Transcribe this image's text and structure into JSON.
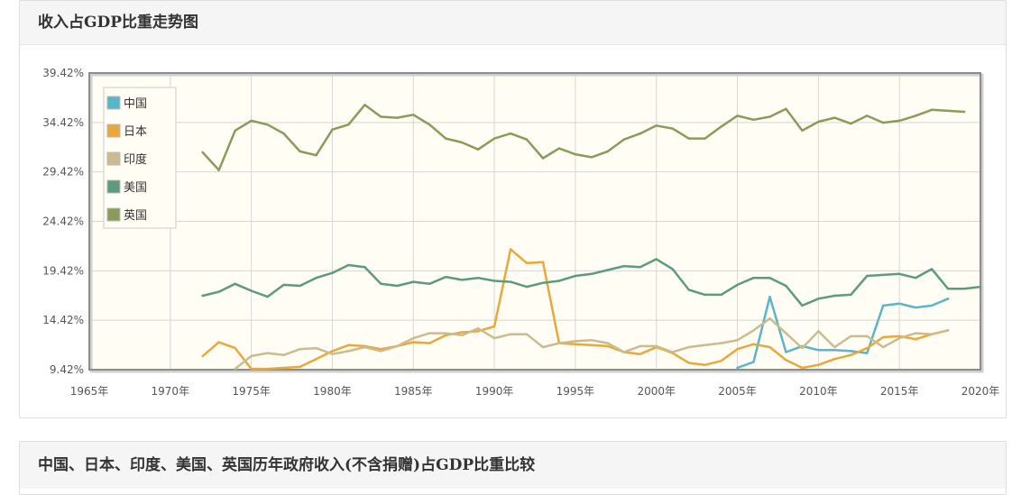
{
  "panel_top": {
    "title": "收入占GDP比重走势图"
  },
  "panel_bottom": {
    "title": "中国、日本、印度、美国、英国历年政府收入(不含捐赠)占GDP比重比较"
  },
  "chart_data": {
    "type": "line",
    "title": "",
    "xlabel": "",
    "ylabel": "",
    "xlim": [
      1965,
      2020
    ],
    "ylim": [
      9.42,
      39.42
    ],
    "x_ticks": [
      "1965年",
      "1970年",
      "1975年",
      "1980年",
      "1985年",
      "1990年",
      "1995年",
      "2000年",
      "2005年",
      "2010年",
      "2015年",
      "2020年"
    ],
    "y_ticks": [
      "9.42%",
      "14.42%",
      "19.42%",
      "24.42%",
      "29.42%",
      "34.42%",
      "39.42%"
    ],
    "grid": true,
    "legend_position": "top-left",
    "series": [
      {
        "name": "中国",
        "color": "#5bb5c8",
        "x": [
          2005,
          2006,
          2007,
          2008,
          2009,
          2010,
          2011,
          2012,
          2013,
          2014,
          2015,
          2016,
          2017,
          2018
        ],
        "y": [
          9.6,
          10.2,
          16.8,
          11.2,
          11.8,
          11.4,
          11.4,
          11.3,
          11.1,
          15.9,
          16.1,
          15.7,
          15.9,
          16.6
        ]
      },
      {
        "name": "日本",
        "color": "#e8a83a",
        "x": [
          1972,
          1973,
          1974,
          1975,
          1976,
          1977,
          1978,
          1979,
          1980,
          1981,
          1982,
          1983,
          1984,
          1985,
          1986,
          1987,
          1988,
          1989,
          1990,
          1991,
          1992,
          1993,
          1994,
          1995,
          1996,
          1997,
          1998,
          1999,
          2000,
          2001,
          2002,
          2003,
          2004,
          2005,
          2006,
          2007,
          2008,
          2009,
          2010,
          2011,
          2012,
          2013,
          2014,
          2015,
          2016,
          2017,
          2018
        ],
        "y": [
          10.8,
          12.2,
          11.6,
          9.5,
          9.5,
          9.6,
          9.7,
          10.5,
          11.3,
          11.9,
          11.8,
          11.5,
          11.8,
          12.2,
          12.1,
          12.9,
          13.2,
          13.3,
          13.8,
          21.6,
          20.2,
          20.3,
          12.1,
          12.0,
          11.9,
          11.8,
          11.2,
          11.0,
          11.7,
          11.1,
          10.1,
          9.9,
          10.3,
          11.5,
          12.0,
          11.7,
          10.4,
          9.6,
          9.9,
          10.5,
          10.9,
          11.6,
          12.7,
          12.8,
          12.5,
          13.0,
          13.4
        ]
      },
      {
        "name": "印度",
        "color": "#cbbb8f",
        "x": [
          1974,
          1975,
          1976,
          1977,
          1978,
          1979,
          1980,
          1981,
          1982,
          1983,
          1984,
          1985,
          1986,
          1987,
          1988,
          1989,
          1990,
          1991,
          1992,
          1993,
          1994,
          1995,
          1996,
          1997,
          1998,
          1999,
          2000,
          2001,
          2002,
          2003,
          2004,
          2005,
          2006,
          2007,
          2008,
          2009,
          2010,
          2011,
          2012,
          2013,
          2014,
          2015,
          2016,
          2017,
          2018
        ],
        "y": [
          9.5,
          10.8,
          11.1,
          10.9,
          11.5,
          11.6,
          11.0,
          11.3,
          11.7,
          11.3,
          11.8,
          12.6,
          13.1,
          13.1,
          12.9,
          13.6,
          12.6,
          13.0,
          13.0,
          11.7,
          12.1,
          12.3,
          12.4,
          12.1,
          11.2,
          11.8,
          11.8,
          11.2,
          11.7,
          11.9,
          12.1,
          12.4,
          13.4,
          14.6,
          13.1,
          11.6,
          13.3,
          11.7,
          12.8,
          12.8,
          11.7,
          12.6,
          13.1,
          13.0,
          13.4
        ]
      },
      {
        "name": "美国",
        "color": "#5e9a7c",
        "x": [
          1972,
          1973,
          1974,
          1975,
          1976,
          1977,
          1978,
          1979,
          1980,
          1981,
          1982,
          1983,
          1984,
          1985,
          1986,
          1987,
          1988,
          1989,
          1990,
          1991,
          1992,
          1993,
          1994,
          1995,
          1996,
          1997,
          1998,
          1999,
          2000,
          2001,
          2002,
          2003,
          2004,
          2005,
          2006,
          2007,
          2008,
          2009,
          2010,
          2011,
          2012,
          2013,
          2014,
          2015,
          2016,
          2017,
          2018,
          2019,
          2020
        ],
        "y": [
          16.9,
          17.3,
          18.1,
          17.4,
          16.8,
          18.0,
          17.9,
          18.7,
          19.2,
          20.0,
          19.8,
          18.1,
          17.9,
          18.3,
          18.1,
          18.8,
          18.5,
          18.7,
          18.4,
          18.3,
          17.8,
          18.2,
          18.4,
          18.9,
          19.1,
          19.5,
          19.9,
          19.8,
          20.6,
          19.6,
          17.5,
          17.0,
          17.0,
          18.0,
          18.7,
          18.7,
          17.9,
          15.9,
          16.6,
          16.9,
          17.0,
          18.9,
          19.0,
          19.1,
          18.7,
          19.6,
          17.6,
          17.6,
          17.8
        ]
      },
      {
        "name": "英国",
        "color": "#8b9b5c",
        "x": [
          1972,
          1973,
          1974,
          1975,
          1976,
          1977,
          1978,
          1979,
          1980,
          1981,
          1982,
          1983,
          1984,
          1985,
          1986,
          1987,
          1988,
          1989,
          1990,
          1991,
          1992,
          1993,
          1994,
          1995,
          1996,
          1997,
          1998,
          1999,
          2000,
          2001,
          2002,
          2003,
          2004,
          2005,
          2006,
          2007,
          2008,
          2009,
          2010,
          2011,
          2012,
          2013,
          2014,
          2015,
          2016,
          2017,
          2018,
          2019
        ],
        "y": [
          31.4,
          29.6,
          33.6,
          34.6,
          34.2,
          33.3,
          31.5,
          31.1,
          33.7,
          34.2,
          36.2,
          35.0,
          34.9,
          35.2,
          34.2,
          32.8,
          32.4,
          31.7,
          32.8,
          33.3,
          32.7,
          30.8,
          31.8,
          31.2,
          30.9,
          31.5,
          32.7,
          33.3,
          34.1,
          33.8,
          32.8,
          32.8,
          34.0,
          35.1,
          34.7,
          35.0,
          35.8,
          33.6,
          34.5,
          34.9,
          34.3,
          35.1,
          34.4,
          34.6,
          35.1,
          35.7,
          35.6,
          35.5
        ]
      }
    ]
  }
}
